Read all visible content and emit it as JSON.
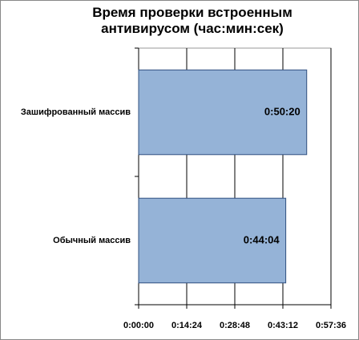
{
  "chart_data": {
    "type": "barh",
    "title": "Время проверки встроенным антивирусом (час:мин:сек)",
    "categories": [
      "Зашифрованный массив",
      "Обычный массив"
    ],
    "values": [
      3020,
      2644
    ],
    "value_labels": [
      "0:50:20",
      "0:44:04"
    ],
    "color": "#95b3d7",
    "xlim": [
      0,
      3456
    ],
    "xticks": [
      {
        "value": 0,
        "label": "0:00:00"
      },
      {
        "value": 864,
        "label": "0:14:24"
      },
      {
        "value": 1728,
        "label": "0:28:48"
      },
      {
        "value": 2592,
        "label": "0:43:12"
      },
      {
        "value": 3456,
        "label": "0:57:36"
      }
    ],
    "grid": true
  }
}
